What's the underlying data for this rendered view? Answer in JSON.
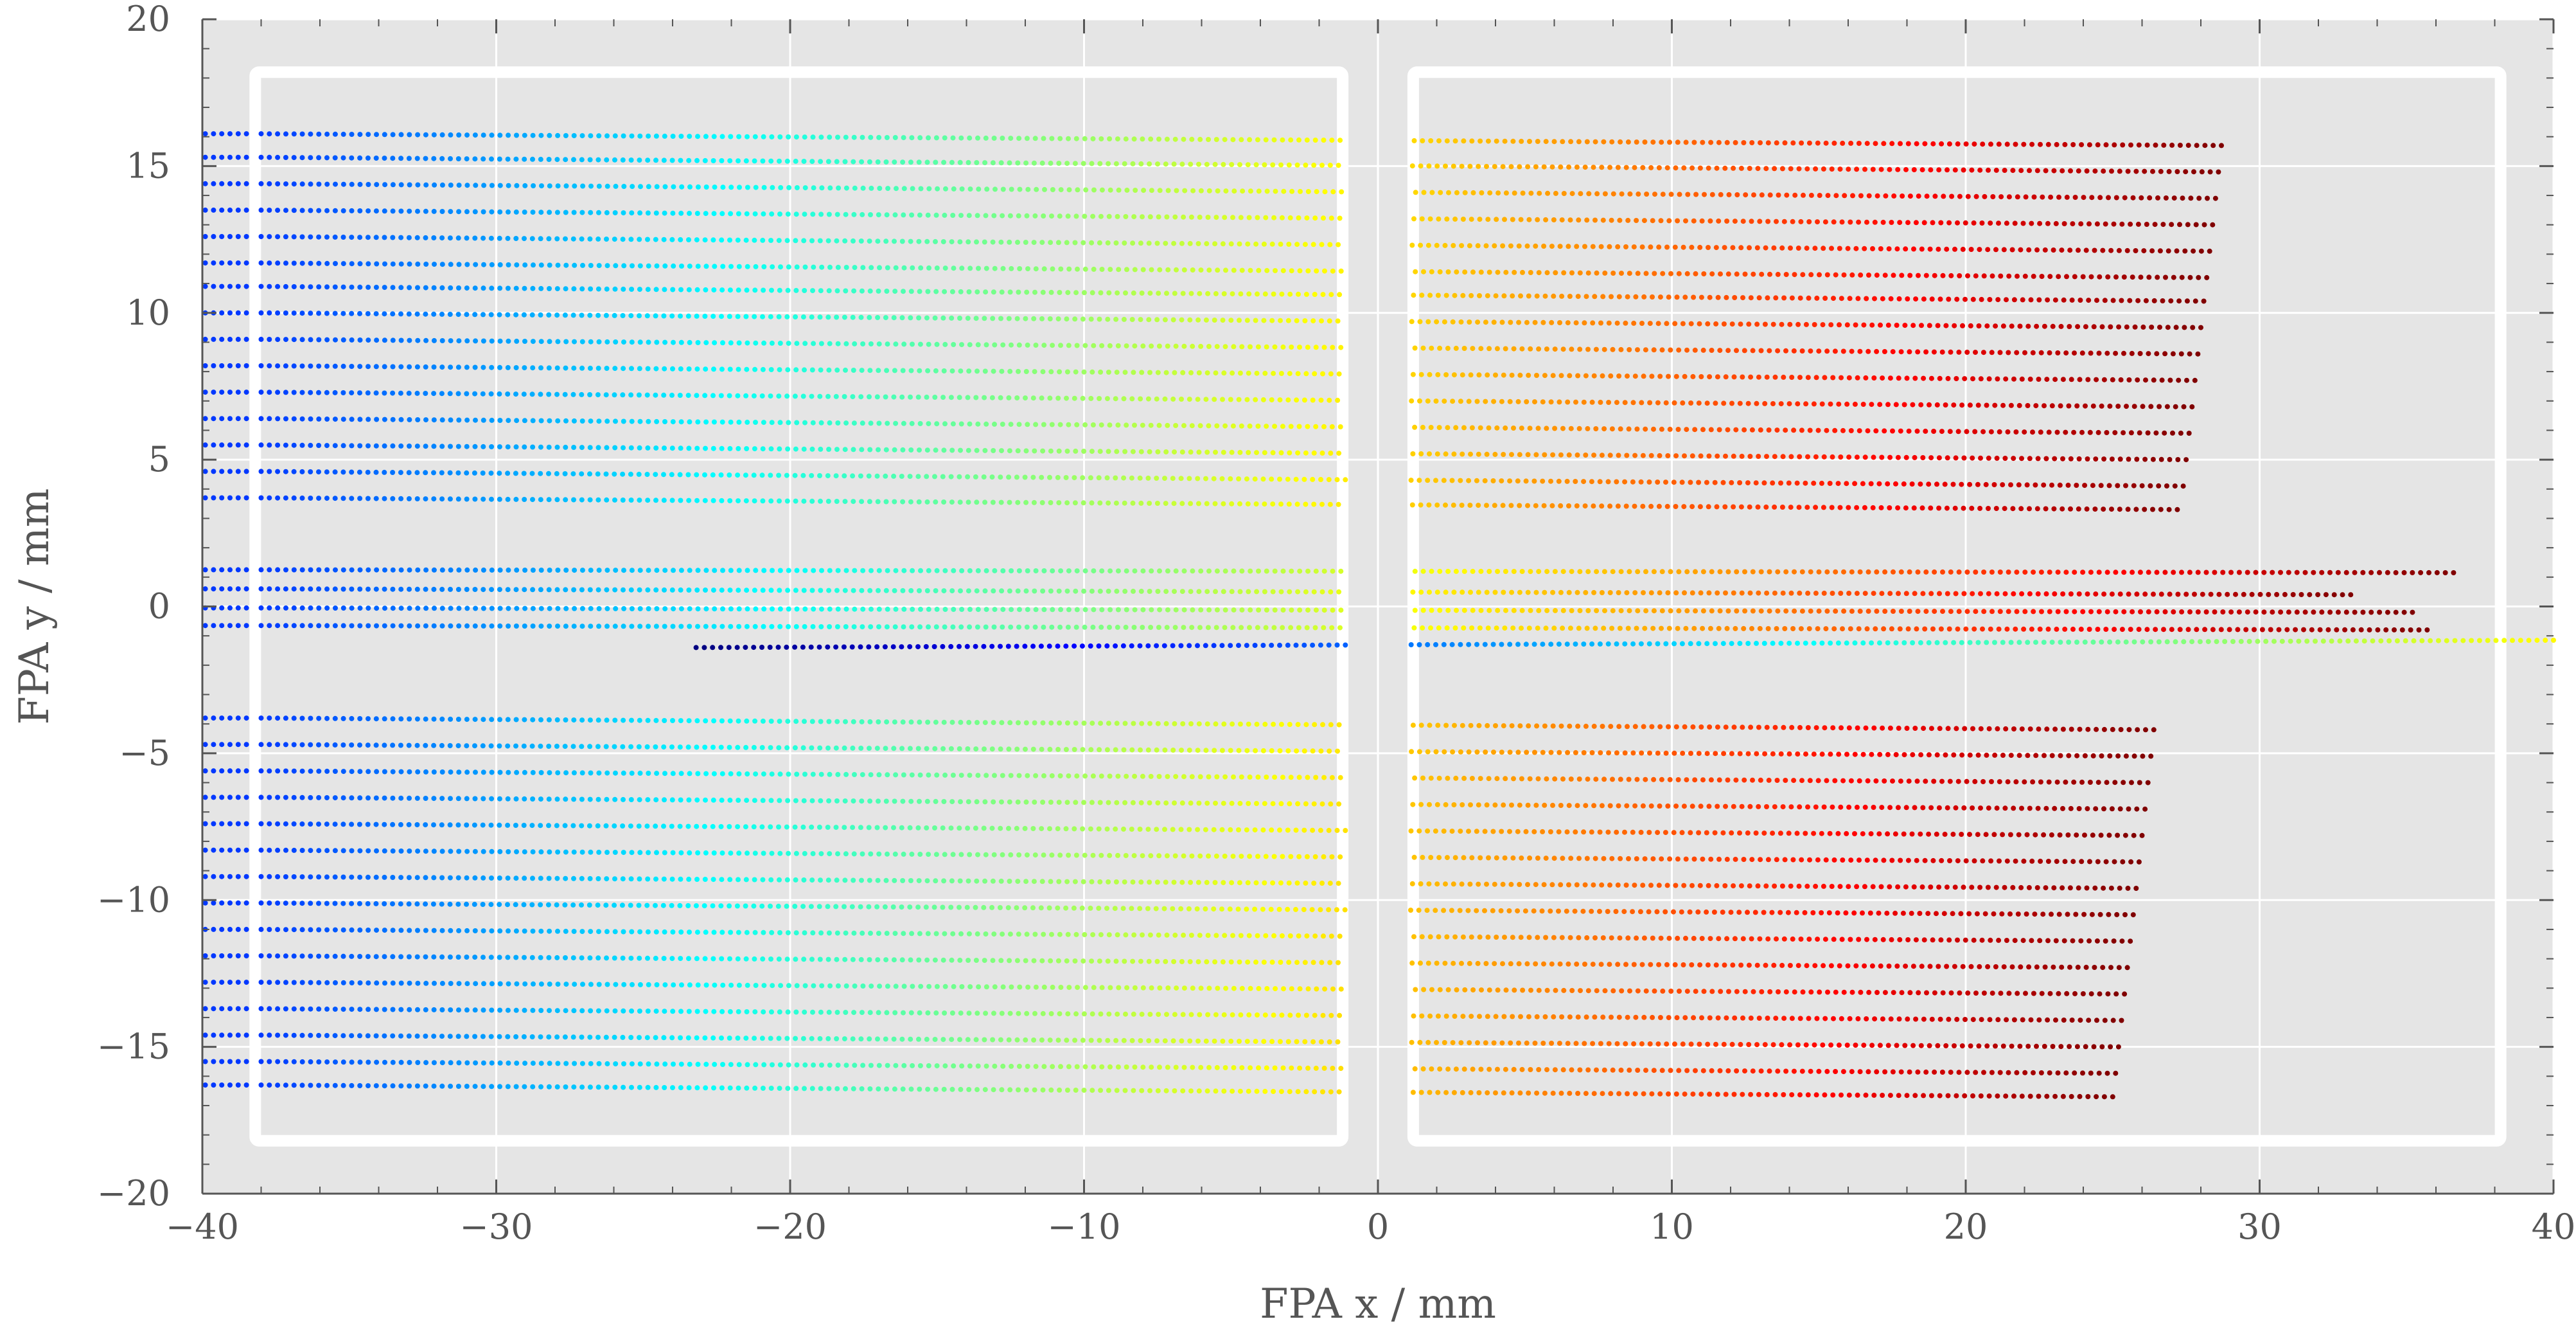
{
  "chart_data": {
    "type": "scatter",
    "title": "",
    "xlabel": "FPA x / mm",
    "ylabel": "FPA y / mm",
    "xlim": [
      -40,
      40
    ],
    "ylim": [
      -20,
      20
    ],
    "xticks": [
      -40,
      -30,
      -20,
      -10,
      0,
      10,
      20,
      30,
      40
    ],
    "yticks": [
      -20,
      -15,
      -10,
      -5,
      0,
      5,
      10,
      15,
      20
    ],
    "xtick_labels": [
      "−40",
      "−30",
      "−20",
      "−10",
      "0",
      "10",
      "20",
      "30",
      "40"
    ],
    "ytick_labels": [
      "−20",
      "−15",
      "−10",
      "−5",
      "0",
      "5",
      "10",
      "15",
      "20"
    ],
    "grid": true,
    "legend": "none",
    "background": "#e5e5e5",
    "colormap": "jet",
    "detector_outlines": [
      {
        "x0": -38.2,
        "x1": -1.2,
        "y0": -18.2,
        "y1": 18.2
      },
      {
        "x0": 1.2,
        "x1": 38.2,
        "y0": -18.2,
        "y1": 18.2
      }
    ],
    "series": [
      {
        "x_start": -38,
        "x_end": 28.7,
        "y_start": 16.1,
        "y_end": 15.7,
        "stub": true
      },
      {
        "x_start": -38,
        "x_end": 28.6,
        "y_start": 15.3,
        "y_end": 14.8,
        "stub": true
      },
      {
        "x_start": -38,
        "x_end": 28.5,
        "y_start": 14.4,
        "y_end": 13.9,
        "stub": true
      },
      {
        "x_start": -38,
        "x_end": 28.4,
        "y_start": 13.5,
        "y_end": 13.0,
        "stub": true
      },
      {
        "x_start": -38,
        "x_end": 28.3,
        "y_start": 12.6,
        "y_end": 12.1,
        "stub": true
      },
      {
        "x_start": -38,
        "x_end": 28.2,
        "y_start": 11.7,
        "y_end": 11.2,
        "stub": true
      },
      {
        "x_start": -38,
        "x_end": 28.1,
        "y_start": 10.9,
        "y_end": 10.4,
        "stub": true
      },
      {
        "x_start": -38,
        "x_end": 28.0,
        "y_start": 10.0,
        "y_end": 9.5,
        "stub": true
      },
      {
        "x_start": -38,
        "x_end": 27.9,
        "y_start": 9.1,
        "y_end": 8.6,
        "stub": true
      },
      {
        "x_start": -38,
        "x_end": 27.8,
        "y_start": 8.2,
        "y_end": 7.7,
        "stub": true
      },
      {
        "x_start": -38,
        "x_end": 27.7,
        "y_start": 7.3,
        "y_end": 6.8,
        "stub": true
      },
      {
        "x_start": -38,
        "x_end": 27.6,
        "y_start": 6.4,
        "y_end": 5.9,
        "stub": true
      },
      {
        "x_start": -38,
        "x_end": 27.5,
        "y_start": 5.5,
        "y_end": 5.0,
        "stub": true
      },
      {
        "x_start": -38,
        "x_end": 27.4,
        "y_start": 4.6,
        "y_end": 4.1,
        "stub": true
      },
      {
        "x_start": -38,
        "x_end": 27.2,
        "y_start": 3.7,
        "y_end": 3.3,
        "stub": true
      },
      {
        "x_start": -38,
        "x_end": 36.6,
        "y_start": 1.25,
        "y_end": 1.15,
        "stub": true
      },
      {
        "x_start": -38,
        "x_end": 33.1,
        "y_start": 0.6,
        "y_end": 0.4,
        "stub": true
      },
      {
        "x_start": -38,
        "x_end": 35.2,
        "y_start": -0.05,
        "y_end": -0.2,
        "stub": true
      },
      {
        "x_start": -38,
        "x_end": 35.7,
        "y_start": -0.65,
        "y_end": -0.8,
        "stub": true
      },
      {
        "x_start": -23.2,
        "x_end": 40.0,
        "y_start": -1.4,
        "y_end": -1.15,
        "stub": false
      },
      {
        "x_start": -38,
        "x_end": 26.4,
        "y_start": -3.8,
        "y_end": -4.2,
        "stub": true
      },
      {
        "x_start": -38,
        "x_end": 26.3,
        "y_start": -4.7,
        "y_end": -5.1,
        "stub": true
      },
      {
        "x_start": -38,
        "x_end": 26.2,
        "y_start": -5.6,
        "y_end": -6.0,
        "stub": true
      },
      {
        "x_start": -38,
        "x_end": 26.1,
        "y_start": -6.5,
        "y_end": -6.9,
        "stub": true
      },
      {
        "x_start": -38,
        "x_end": 26.0,
        "y_start": -7.4,
        "y_end": -7.8,
        "stub": true
      },
      {
        "x_start": -38,
        "x_end": 25.9,
        "y_start": -8.3,
        "y_end": -8.7,
        "stub": true
      },
      {
        "x_start": -38,
        "x_end": 25.8,
        "y_start": -9.2,
        "y_end": -9.6,
        "stub": true
      },
      {
        "x_start": -38,
        "x_end": 25.7,
        "y_start": -10.1,
        "y_end": -10.5,
        "stub": true
      },
      {
        "x_start": -38,
        "x_end": 25.6,
        "y_start": -11.0,
        "y_end": -11.4,
        "stub": true
      },
      {
        "x_start": -38,
        "x_end": 25.5,
        "y_start": -11.9,
        "y_end": -12.3,
        "stub": true
      },
      {
        "x_start": -38,
        "x_end": 25.4,
        "y_start": -12.8,
        "y_end": -13.2,
        "stub": true
      },
      {
        "x_start": -38,
        "x_end": 25.3,
        "y_start": -13.7,
        "y_end": -14.1,
        "stub": true
      },
      {
        "x_start": -38,
        "x_end": 25.2,
        "y_start": -14.6,
        "y_end": -15.0,
        "stub": true
      },
      {
        "x_start": -38,
        "x_end": 25.1,
        "y_start": -15.5,
        "y_end": -15.9,
        "stub": true
      },
      {
        "x_start": -38,
        "x_end": 25.0,
        "y_start": -16.3,
        "y_end": -16.7,
        "stub": true
      }
    ]
  }
}
